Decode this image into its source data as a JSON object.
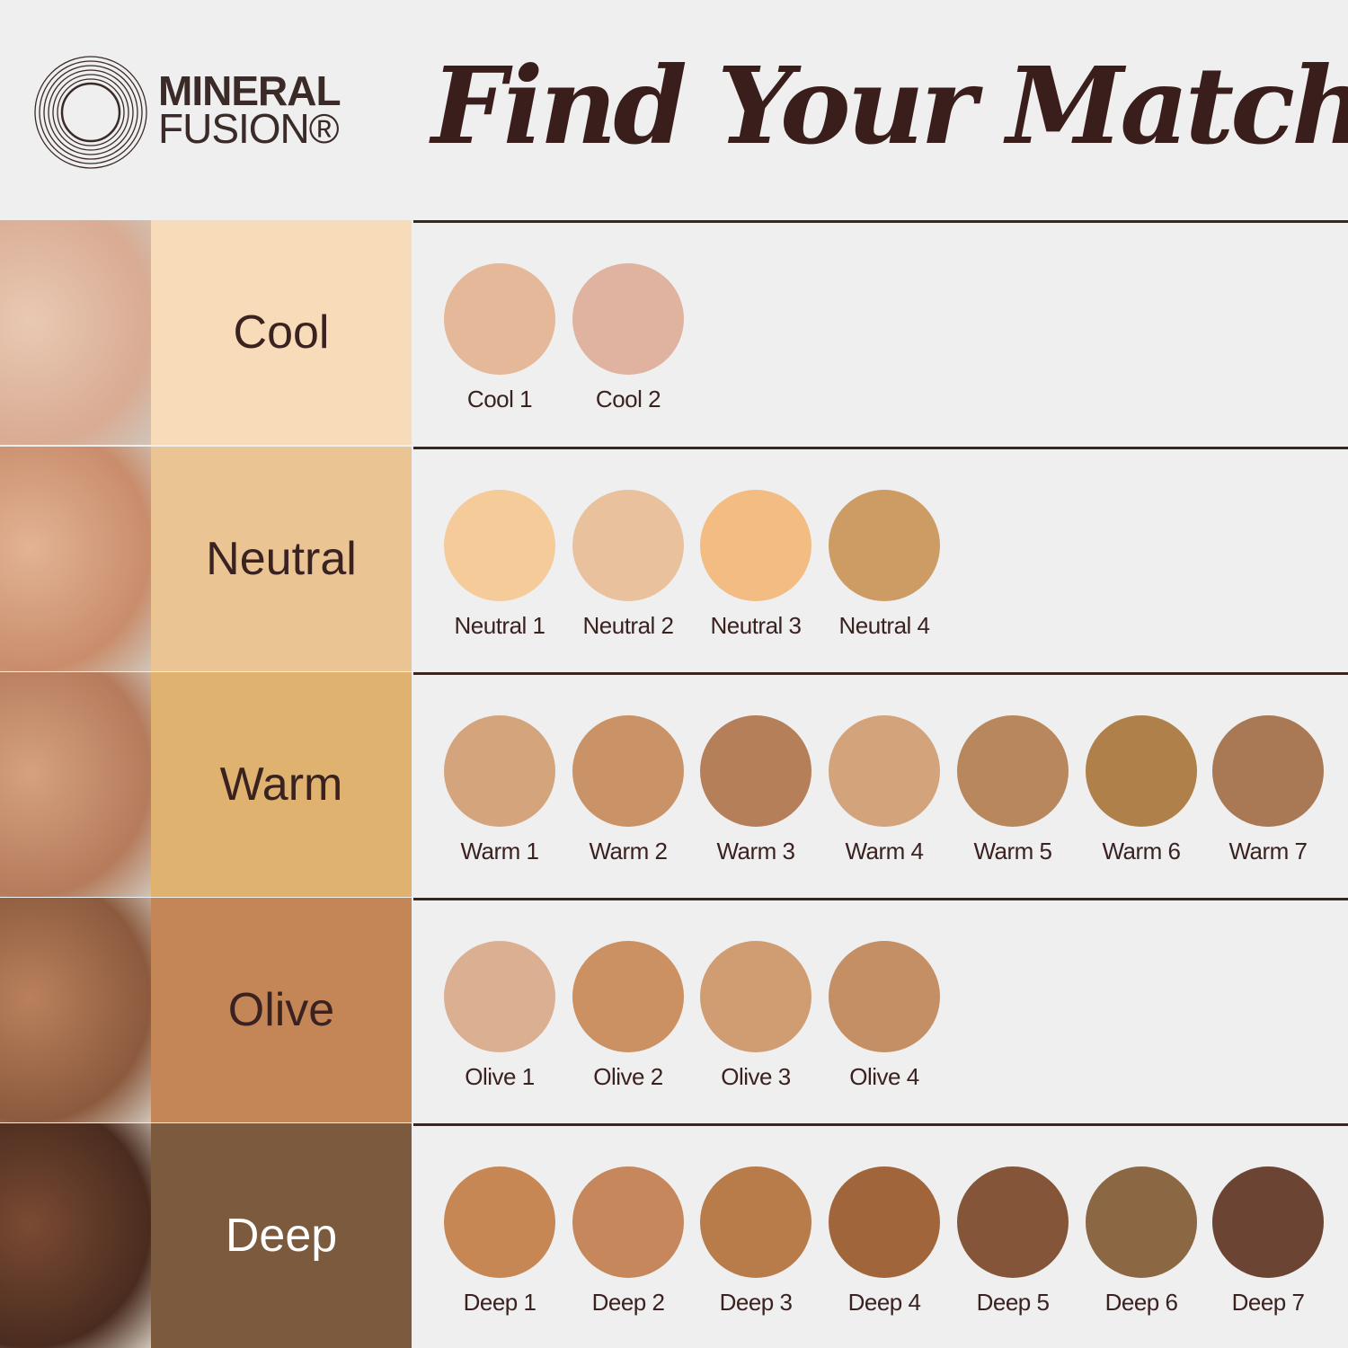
{
  "brand": {
    "line1": "MINERAL",
    "line2": "FUSION®"
  },
  "title": "Find Your Match",
  "rows": [
    {
      "label": "Cool",
      "color": "#f8dcb9",
      "text_color": "#3a2220",
      "skin": [
        "#e9c9b3",
        "#d9ab93"
      ],
      "swatches": [
        {
          "name": "Cool 1",
          "color": "#e4b898"
        },
        {
          "name": "Cool 2",
          "color": "#dfb39f"
        }
      ]
    },
    {
      "label": "Neutral",
      "color": "#ebc494",
      "text_color": "#3a2220",
      "skin": [
        "#e2b394",
        "#c98d6c"
      ],
      "swatches": [
        {
          "name": "Neutral 1",
          "color": "#f5cb9a"
        },
        {
          "name": "Neutral 2",
          "color": "#e9c29d"
        },
        {
          "name": "Neutral 3",
          "color": "#f3bc82"
        },
        {
          "name": "Neutral 4",
          "color": "#cd9c64"
        }
      ]
    },
    {
      "label": "Warm",
      "color": "#dfb26f",
      "text_color": "#3a2220",
      "skin": [
        "#d5a17f",
        "#b57b5c"
      ],
      "swatches": [
        {
          "name": "Warm 1",
          "color": "#d4a57c"
        },
        {
          "name": "Warm 2",
          "color": "#c99367"
        },
        {
          "name": "Warm 3",
          "color": "#b47f59"
        },
        {
          "name": "Warm 4",
          "color": "#d3a47c"
        },
        {
          "name": "Warm 5",
          "color": "#b8875e"
        },
        {
          "name": "Warm 6",
          "color": "#b0804a"
        },
        {
          "name": "Warm 7",
          "color": "#a97955"
        }
      ]
    },
    {
      "label": "Olive",
      "color": "#c48657",
      "text_color": "#3a2220",
      "skin": [
        "#b9805c",
        "#8c5a3e"
      ],
      "swatches": [
        {
          "name": "Olive 1",
          "color": "#dbb092"
        },
        {
          "name": "Olive 2",
          "color": "#cb9163"
        },
        {
          "name": "Olive 3",
          "color": "#d09d73"
        },
        {
          "name": "Olive 4",
          "color": "#c48f65"
        }
      ]
    },
    {
      "label": "Deep",
      "color": "#7c5a3e",
      "text_color": "#ffffff",
      "skin": [
        "#7a4a33",
        "#4a2c1f"
      ],
      "swatches": [
        {
          "name": "Deep 1",
          "color": "#c78754"
        },
        {
          "name": "Deep 2",
          "color": "#c5875b"
        },
        {
          "name": "Deep 3",
          "color": "#b87b4a"
        },
        {
          "name": "Deep 4",
          "color": "#a1653b"
        },
        {
          "name": "Deep 5",
          "color": "#845539"
        },
        {
          "name": "Deep 6",
          "color": "#8b6744"
        },
        {
          "name": "Deep 7",
          "color": "#6b4434"
        }
      ]
    }
  ]
}
